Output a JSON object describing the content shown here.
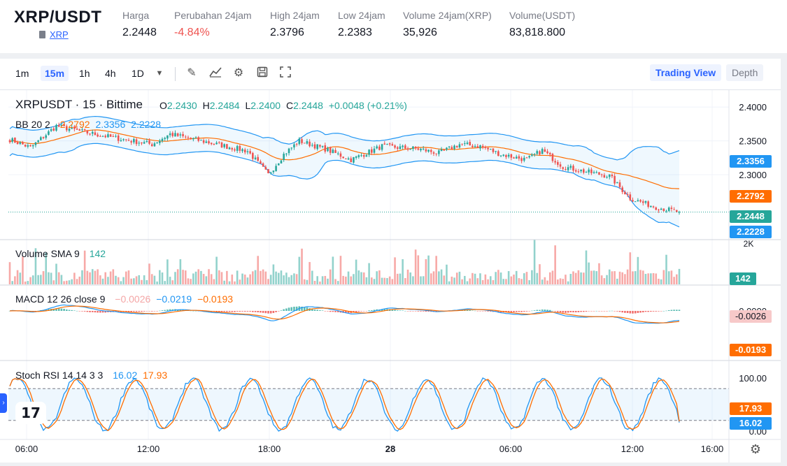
{
  "header": {
    "pair": "XRP/USDT",
    "sub_label": "XRP",
    "stats": [
      {
        "label": "Harga",
        "value": "2.2448",
        "neg": false
      },
      {
        "label": "Perubahan 24jam",
        "value": "-4.84%",
        "neg": true
      },
      {
        "label": "High 24jam",
        "value": "2.3796",
        "neg": false
      },
      {
        "label": "Low 24jam",
        "value": "2.2383",
        "neg": false
      },
      {
        "label": "Volume 24jam(XRP)",
        "value": "35,926",
        "neg": false
      },
      {
        "label": "Volume(USDT)",
        "value": "83,818.800",
        "neg": false
      }
    ]
  },
  "toolbar": {
    "timeframes": [
      "1m",
      "15m",
      "1h",
      "4h",
      "1D"
    ],
    "active_timeframe": "15m",
    "tools": [
      "pen-icon",
      "line-chart-icon",
      "gear-icon",
      "save-icon",
      "fullscreen-icon"
    ],
    "tab_trading": "Trading View",
    "tab_depth": "Depth"
  },
  "legend": {
    "symbol": "XRPUSDT · 15 · Bittime",
    "o_label": "O",
    "o": "2.2430",
    "h_label": "H",
    "h": "2.2484",
    "l_label": "L",
    "l": "2.2400",
    "c_label": "C",
    "c": "2.2448",
    "change": "+0.0048 (+0.21%)",
    "bb_label": "BB 20 2",
    "bb_mid": "2.2792",
    "bb_up": "2.3356",
    "bb_low": "2.2228",
    "vol_label": "Volume SMA 9",
    "vol_val": "142",
    "macd_label": "MACD 12 26 close 9",
    "macd_hist": "−0.0026",
    "macd_line": "−0.0219",
    "macd_signal": "−0.0193",
    "stoch_label": "Stoch RSI 14 14 3 3",
    "stoch_k": "16.02",
    "stoch_d": "17.93"
  },
  "axis": {
    "price_ticks": [
      "2.4000",
      "2.3500",
      "2.3000"
    ],
    "vol_tick": "2K",
    "macd_tick": "0.0000",
    "stoch_ticks": [
      "100.00",
      "0.00"
    ],
    "time_ticks": [
      "06:00",
      "12:00",
      "18:00",
      "28",
      "06:00",
      "12:00",
      "16:00"
    ]
  },
  "axis_labels": {
    "bb_up": "2.3356",
    "bb_mid": "2.2792",
    "last": "2.2448",
    "bb_low": "2.2228",
    "vol": "142",
    "macd_hist": "-0.0026",
    "macd_signal": "-0.0193",
    "stoch_d": "17.93",
    "stoch_k": "16.02"
  },
  "colors": {
    "up": "#26a69a",
    "down": "#ef5350",
    "bb": "#2196f3",
    "bb_mid": "#ff6d00",
    "macd": "#2196f3",
    "signal": "#ff6d00",
    "stoch_k": "#2196f3",
    "stoch_d": "#ff6d00"
  },
  "chart_data": {
    "type": "candlestick",
    "interval": "15m",
    "price_range": [
      2.205,
      2.425
    ],
    "close_anchors": [
      [
        0,
        2.352
      ],
      [
        8,
        2.34
      ],
      [
        18,
        2.372
      ],
      [
        30,
        2.362
      ],
      [
        44,
        2.352
      ],
      [
        55,
        2.345
      ],
      [
        62,
        2.36
      ],
      [
        80,
        2.345
      ],
      [
        92,
        2.335
      ],
      [
        100,
        2.3
      ],
      [
        106,
        2.33
      ],
      [
        112,
        2.35
      ],
      [
        122,
        2.338
      ],
      [
        132,
        2.322
      ],
      [
        144,
        2.342
      ],
      [
        158,
        2.338
      ],
      [
        166,
        2.332
      ],
      [
        174,
        2.345
      ],
      [
        182,
        2.342
      ],
      [
        190,
        2.33
      ],
      [
        200,
        2.322
      ],
      [
        206,
        2.336
      ],
      [
        214,
        2.312
      ],
      [
        222,
        2.305
      ],
      [
        232,
        2.298
      ],
      [
        240,
        2.265
      ],
      [
        250,
        2.252
      ],
      [
        259,
        2.2448
      ]
    ],
    "bollinger": {
      "upper_last": 2.3356,
      "middle_last": 2.2792,
      "lower_last": 2.2228
    },
    "volume_sma": 142,
    "macd": {
      "histogram": -0.0026,
      "macd": -0.0219,
      "signal": -0.0193
    },
    "stoch_rsi": {
      "k": 16.02,
      "d": 17.93,
      "upper_band": 80,
      "lower_band": 20
    }
  }
}
